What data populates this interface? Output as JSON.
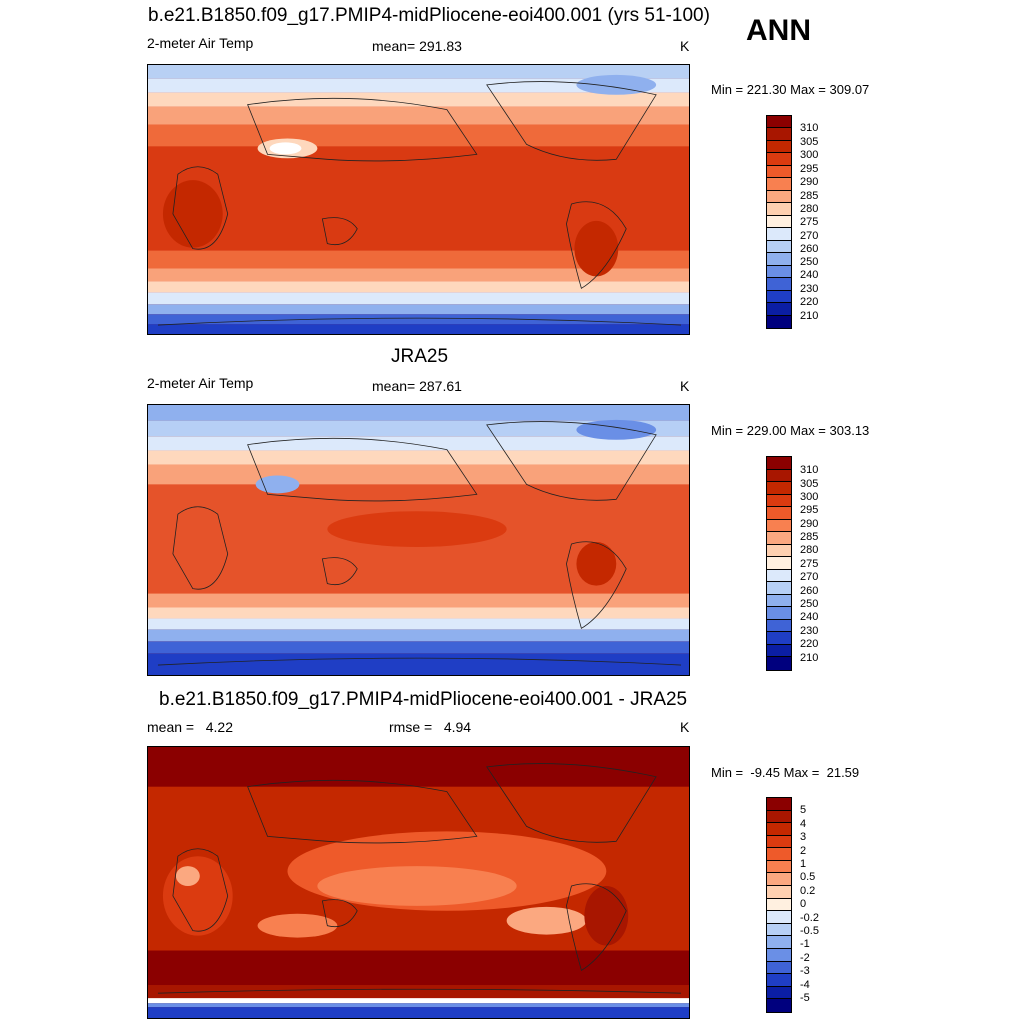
{
  "season": "ANN",
  "panels": [
    {
      "title": "b.e21.B1850.f09_g17.PMIP4-midPliocene-eoi400.001 (yrs 51-100)",
      "left_label": "2-meter Air Temp",
      "center_label": "mean= 291.83",
      "units": "K",
      "minmax": "Min = 221.30 Max = 309.07",
      "levels": [
        "310",
        "305",
        "300",
        "295",
        "290",
        "285",
        "280",
        "275",
        "270",
        "260",
        "250",
        "240",
        "230",
        "220",
        "210"
      ],
      "colors": [
        "#8b0000",
        "#a81600",
        "#c42800",
        "#db3b10",
        "#ee5a2a",
        "#f88050",
        "#fba880",
        "#fed0b0",
        "#fff0e0",
        "#dce9fb",
        "#b6cff5",
        "#8fb0ee",
        "#6a8fe6",
        "#3f63d6",
        "#1f3ec5",
        "#0b1ea4",
        "#00007e"
      ]
    },
    {
      "title": "JRA25",
      "left_label": "2-meter Air Temp",
      "center_label": "mean= 287.61",
      "units": "K",
      "minmax": "Min = 229.00 Max = 303.13",
      "levels": [
        "310",
        "305",
        "300",
        "295",
        "290",
        "285",
        "280",
        "275",
        "270",
        "260",
        "250",
        "240",
        "230",
        "220",
        "210"
      ],
      "colors": [
        "#8b0000",
        "#a81600",
        "#c42800",
        "#db3b10",
        "#ee5a2a",
        "#f88050",
        "#fba880",
        "#fed0b0",
        "#fff0e0",
        "#dce9fb",
        "#b6cff5",
        "#8fb0ee",
        "#6a8fe6",
        "#3f63d6",
        "#1f3ec5",
        "#0b1ea4",
        "#00007e"
      ]
    },
    {
      "title": "b.e21.B1850.f09_g17.PMIP4-midPliocene-eoi400.001 - JRA25",
      "left_label": "mean =   4.22",
      "center_label": "rmse =   4.94",
      "units": "K",
      "minmax": "Min =  -9.45 Max =  21.59",
      "levels": [
        "5",
        "4",
        "3",
        "2",
        "1",
        "0.5",
        "0.2",
        "0",
        "-0.2",
        "-0.5",
        "-1",
        "-2",
        "-3",
        "-4",
        "-5"
      ],
      "colors": [
        "#8b0000",
        "#a81600",
        "#c42800",
        "#db3b10",
        "#ee5a2a",
        "#f88050",
        "#fba880",
        "#fed0b0",
        "#fff0e0",
        "#dce9fb",
        "#b6cff5",
        "#8fb0ee",
        "#6a8fe6",
        "#3f63d6",
        "#1f3ec5",
        "#0b1ea4",
        "#00007e"
      ]
    }
  ]
}
